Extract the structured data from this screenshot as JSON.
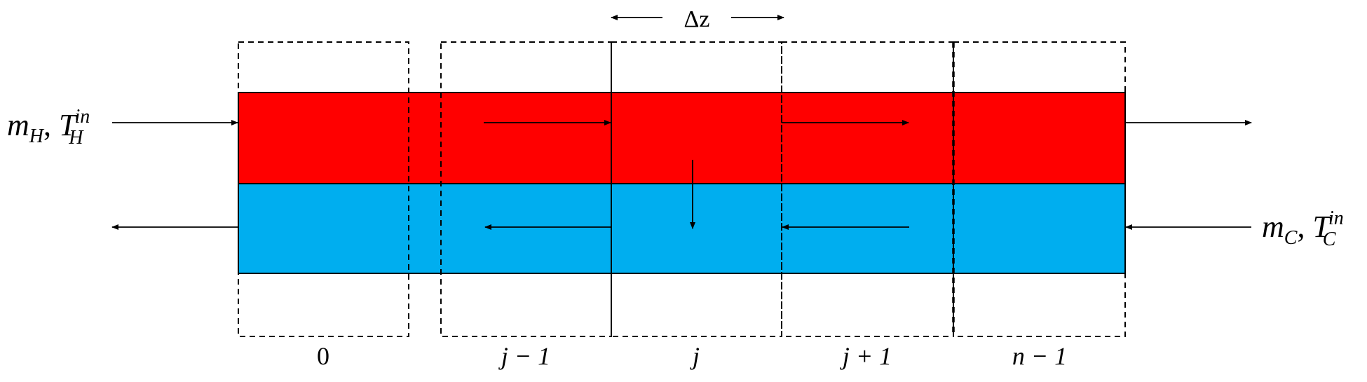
{
  "colors": {
    "hot_stream": "#FF0000",
    "cold_stream": "#00AEEF",
    "lines": "#000000"
  },
  "labels": {
    "delta_z": "Δz",
    "hot_inlet": {
      "m": "m",
      "m_sub": "H",
      "T": "T",
      "T_sub": "H",
      "T_sup": "in"
    },
    "cold_inlet": {
      "m": "m",
      "m_sub": "C",
      "T": "T",
      "T_sub": "C",
      "T_sup": "in"
    }
  },
  "segments": [
    {
      "label": "0"
    },
    {
      "label": "j − 1"
    },
    {
      "label": "j"
    },
    {
      "label": "j + 1"
    },
    {
      "label": "n − 1"
    }
  ]
}
